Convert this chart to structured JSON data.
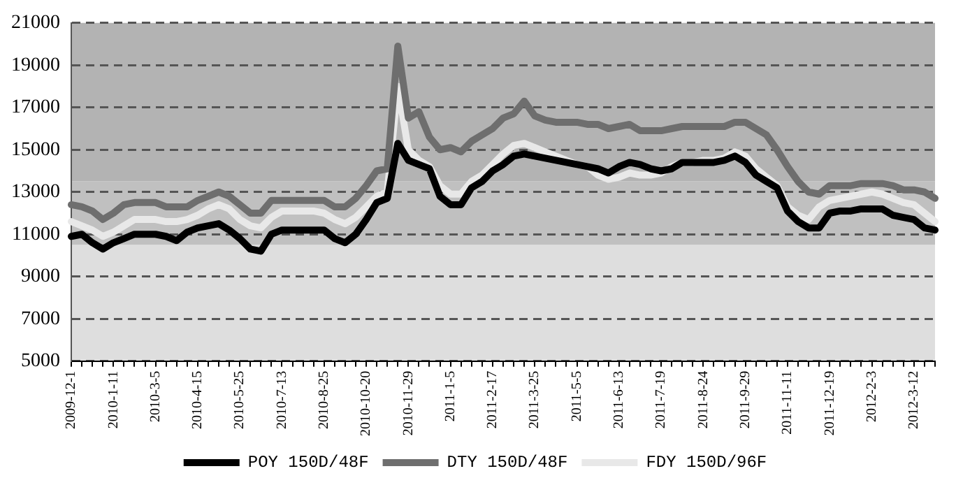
{
  "chart_data": {
    "type": "line",
    "categories": [
      "2009-12-1",
      null,
      null,
      null,
      "2010-1-11",
      null,
      null,
      null,
      "2010-3-5",
      null,
      null,
      null,
      "2010-4-15",
      null,
      null,
      null,
      "2010-5-25",
      null,
      null,
      null,
      "2010-7-13",
      null,
      null,
      null,
      "2010-8-25",
      null,
      null,
      null,
      "2010-10-20",
      null,
      null,
      null,
      "2010-11-29",
      null,
      null,
      null,
      "2011-1-5",
      null,
      null,
      null,
      "2011-2-17",
      null,
      null,
      null,
      "2011-3-25",
      null,
      null,
      null,
      "2011-5-5",
      null,
      null,
      null,
      "2011-6-13",
      null,
      null,
      null,
      "2011-7-19",
      null,
      null,
      null,
      "2011-8-24",
      null,
      null,
      null,
      "2011-9-29",
      null,
      null,
      null,
      "2011-11-11",
      null,
      null,
      null,
      "2011-12-19",
      null,
      null,
      null,
      "2012-2-3",
      null,
      null,
      null,
      "2012-3-12",
      null,
      null
    ],
    "series": [
      {
        "name": "POY 150D/48F",
        "color": "#000000",
        "values": [
          10900,
          11000,
          10600,
          10300,
          10600,
          10800,
          11000,
          11000,
          11000,
          10900,
          10700,
          11100,
          11300,
          11400,
          11500,
          11200,
          10800,
          10300,
          10200,
          11000,
          11200,
          11200,
          11200,
          11200,
          11200,
          10800,
          10600,
          11000,
          11700,
          12500,
          12700,
          15300,
          14500,
          14300,
          14100,
          12800,
          12400,
          12400,
          13200,
          13500,
          14000,
          14300,
          14700,
          14800,
          14700,
          14600,
          14500,
          14400,
          14300,
          14200,
          14100,
          13900,
          14200,
          14400,
          14300,
          14100,
          14000,
          14100,
          14400,
          14400,
          14400,
          14400,
          14500,
          14700,
          14400,
          13800,
          13500,
          13200,
          12100,
          11600,
          11300,
          11300,
          12000,
          12100,
          12100,
          12200,
          12200,
          12200,
          11900,
          11800,
          11700,
          11300,
          11200
        ]
      },
      {
        "name": "DTY 150D/48F",
        "color": "#6e6e6e",
        "values": [
          12400,
          12300,
          12100,
          11700,
          12000,
          12400,
          12500,
          12500,
          12500,
          12300,
          12300,
          12300,
          12600,
          12800,
          13000,
          12800,
          12400,
          12000,
          12000,
          12600,
          12600,
          12600,
          12600,
          12600,
          12600,
          12300,
          12300,
          12700,
          13300,
          14000,
          14100,
          19900,
          16500,
          16800,
          15600,
          15000,
          15100,
          14900,
          15400,
          15700,
          16000,
          16500,
          16700,
          17300,
          16600,
          16400,
          16300,
          16300,
          16300,
          16200,
          16200,
          16000,
          16100,
          16200,
          15900,
          15900,
          15900,
          16000,
          16100,
          16100,
          16100,
          16100,
          16100,
          16300,
          16300,
          16000,
          15700,
          15000,
          14200,
          13500,
          13000,
          12900,
          13300,
          13300,
          13300,
          13400,
          13400,
          13400,
          13300,
          13100,
          13100,
          13000,
          12700
        ]
      },
      {
        "name": "FDY 150D/96F",
        "color": "#e8e8e8",
        "values": [
          11600,
          11400,
          11200,
          10900,
          11100,
          11400,
          11700,
          11700,
          11700,
          11600,
          11600,
          11700,
          11900,
          12200,
          12400,
          12200,
          11700,
          11400,
          11300,
          11800,
          12100,
          12100,
          12100,
          12100,
          12000,
          11700,
          11500,
          11800,
          12300,
          12800,
          13000,
          18000,
          15000,
          14500,
          14200,
          13300,
          12900,
          12900,
          13500,
          13800,
          14300,
          14800,
          15200,
          15300,
          15100,
          14900,
          14700,
          14500,
          14300,
          14200,
          13800,
          13600,
          13700,
          13900,
          13800,
          13800,
          13900,
          14200,
          14400,
          14400,
          14500,
          14500,
          14600,
          14900,
          14700,
          14100,
          13700,
          13300,
          12300,
          11900,
          11700,
          12300,
          12600,
          12700,
          12800,
          12900,
          13000,
          12900,
          12700,
          12500,
          12400,
          12000,
          11600
        ]
      }
    ],
    "ylim": [
      5000,
      21000
    ],
    "yticks": [
      5000,
      7000,
      9000,
      11000,
      13000,
      15000,
      17000,
      19000,
      21000
    ],
    "bands": [
      {
        "axis": "y",
        "from": 5000,
        "to": 10500,
        "color": "#dedede"
      },
      {
        "axis": "y",
        "from": 10500,
        "to": 13500,
        "color": "#c0c0c0"
      },
      {
        "axis": "y",
        "from": 13500,
        "to": 21000,
        "color": "#b3b3b3"
      }
    ],
    "grid": "y",
    "line_style": "solid",
    "marker": "none",
    "legend": "bottom"
  }
}
